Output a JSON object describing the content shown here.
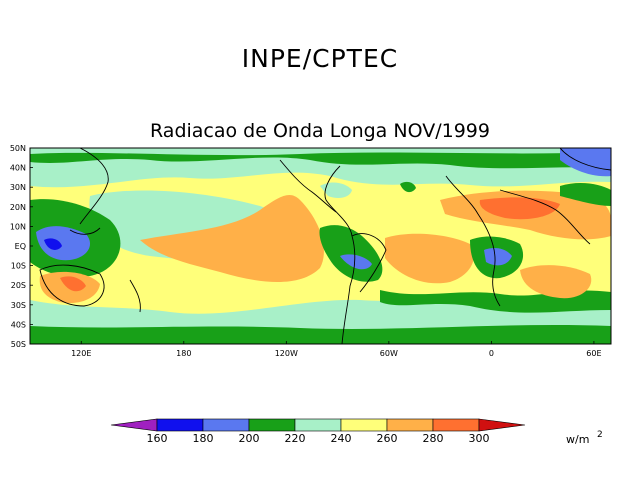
{
  "header": {
    "title": "INPE/CPTEC",
    "subtitle": "Radiacao de Onda Longa NOV/1999"
  },
  "map": {
    "lat_labels": [
      "50N",
      "40N",
      "30N",
      "20N",
      "10N",
      "EQ",
      "10S",
      "20S",
      "30S",
      "40S",
      "50S"
    ],
    "lon_labels": [
      "120E",
      "180",
      "120W",
      "60W",
      "0",
      "60E"
    ]
  },
  "colorbar": {
    "ticks": [
      "160",
      "180",
      "200",
      "220",
      "240",
      "260",
      "280",
      "300"
    ],
    "unit_base": "w/m",
    "unit_exp": "2",
    "bins": [
      {
        "label": "<160",
        "color": "#a020c0"
      },
      {
        "label": "160-180",
        "color": "#1010ee"
      },
      {
        "label": "180-200",
        "color": "#5a78f0"
      },
      {
        "label": "200-220",
        "color": "#18a018"
      },
      {
        "label": "220-240",
        "color": "#a8f0c8"
      },
      {
        "label": "240-260",
        "color": "#ffff7a"
      },
      {
        "label": "260-280",
        "color": "#ffb048"
      },
      {
        "label": "280-300",
        "color": "#ff7030"
      },
      {
        "label": ">300",
        "color": "#d01010"
      }
    ]
  }
}
